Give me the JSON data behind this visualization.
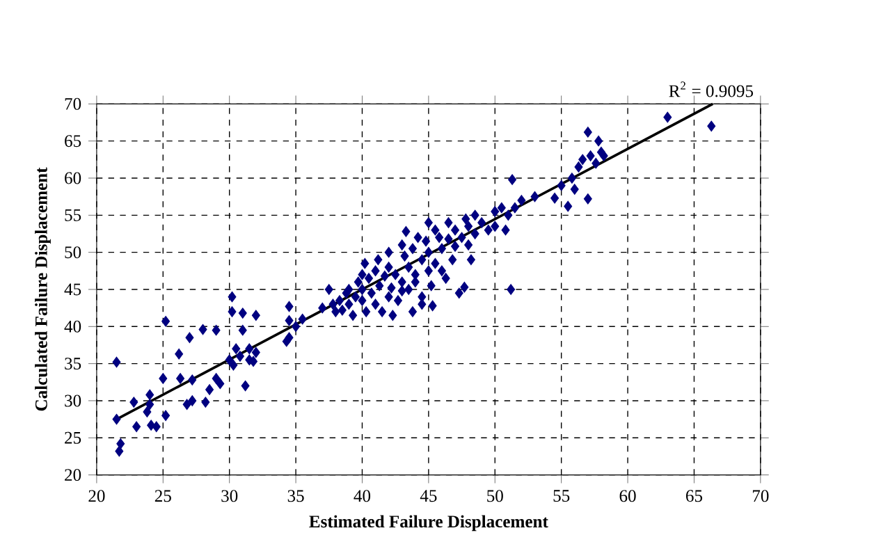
{
  "chart_data": {
    "type": "scatter",
    "xlabel": "Estimated Failure Displacement",
    "ylabel": "Calculated Failure Displacement",
    "xlim": [
      20,
      70
    ],
    "ylim": [
      20,
      70
    ],
    "xticks": [
      20,
      25,
      30,
      35,
      40,
      45,
      50,
      55,
      60,
      65,
      70
    ],
    "yticks": [
      20,
      25,
      30,
      35,
      40,
      45,
      50,
      55,
      60,
      65,
      70
    ],
    "grid": true,
    "marker": "diamond",
    "annotations": [
      "R$^{2}$ = 0.9095"
    ],
    "series": [
      {
        "color": "#000080",
        "x": [
          21.5,
          21.5,
          21.8,
          21.7,
          22.8,
          23,
          23.8,
          24,
          24,
          24.5,
          24.1,
          25.2,
          25,
          25.2,
          26.2,
          26.3,
          26.8,
          27,
          27.2,
          27.2,
          28,
          28.2,
          28.5,
          29,
          29,
          29.3,
          30,
          30.2,
          30.2,
          30.3,
          30.5,
          30.8,
          31,
          31,
          31.2,
          31.5,
          31.8,
          32,
          32,
          31.5,
          34.5,
          34.5,
          34.5,
          34.3,
          35,
          35.5,
          37,
          37.5,
          37.8,
          38,
          38.3,
          38.5,
          38.8,
          39,
          39,
          39.3,
          39.5,
          39.7,
          40,
          40,
          40,
          40.2,
          40.3,
          40.5,
          40.7,
          41,
          41,
          41.2,
          41.3,
          41.5,
          41.7,
          42,
          42,
          42,
          42.2,
          42.3,
          42.5,
          42.7,
          43,
          43,
          43,
          43.2,
          43.3,
          43.5,
          43.5,
          43.8,
          43.8,
          44,
          44,
          44.2,
          44.5,
          44.5,
          44.5,
          44.8,
          45,
          45,
          45,
          45.2,
          45.3,
          45.5,
          45.5,
          45.8,
          46,
          46,
          46.3,
          46.5,
          46.5,
          46.8,
          47,
          47,
          47.3,
          47.5,
          47.7,
          47.8,
          48,
          48,
          48.2,
          48.5,
          48.5,
          49,
          49.5,
          50,
          50,
          50.5,
          50.8,
          51,
          51.3,
          51.2,
          51.5,
          52,
          53,
          54.5,
          55,
          55.5,
          55.8,
          56,
          56.3,
          56.6,
          57,
          57,
          57.2,
          57.6,
          57.8,
          58,
          58.2,
          63,
          66.3
        ],
        "values": [
          35.2,
          27.5,
          24.2,
          23.2,
          29.8,
          26.5,
          28.5,
          30.8,
          29.5,
          26.5,
          26.7,
          40.7,
          33,
          28,
          36.3,
          33,
          29.5,
          38.5,
          32.8,
          30,
          39.6,
          29.8,
          31.5,
          39.5,
          33,
          32.3,
          35.5,
          44,
          42,
          34.8,
          37,
          36,
          39.5,
          41.8,
          32,
          35.5,
          35.3,
          36.5,
          41.5,
          37,
          42.7,
          40.8,
          38.5,
          38,
          40,
          41,
          42.5,
          45,
          43,
          42,
          43.5,
          42.2,
          44.5,
          43,
          45,
          41.5,
          44,
          46,
          47,
          45,
          43.5,
          48.5,
          42,
          46.5,
          44.5,
          47.5,
          43,
          49,
          45.5,
          42,
          46.8,
          44,
          48,
          50,
          45.2,
          41.5,
          47,
          43.5,
          51,
          46,
          44.8,
          49.5,
          52.8,
          48,
          45,
          50.5,
          42,
          47,
          46,
          52,
          49,
          44,
          43,
          51.5,
          54,
          50,
          47.5,
          45.5,
          42.8,
          53,
          48.5,
          52,
          50.5,
          47.5,
          46.5,
          54,
          51.8,
          49,
          53,
          50.8,
          44.5,
          52,
          45.3,
          54.5,
          53.5,
          51,
          49,
          55,
          52.5,
          54,
          53,
          55.5,
          53.5,
          56,
          53,
          55,
          59.8,
          45,
          56,
          57,
          57.5,
          57.3,
          59,
          56.2,
          60,
          58.5,
          61.5,
          62.5,
          66.2,
          57.2,
          63,
          62,
          65,
          63.5,
          63,
          68.2,
          67
        ]
      },
      {
        "type": "line",
        "color": "#000000",
        "marker": "none",
        "x": [
          21.5,
          66.4
        ],
        "values": [
          27.5,
          70
        ]
      }
    ]
  }
}
